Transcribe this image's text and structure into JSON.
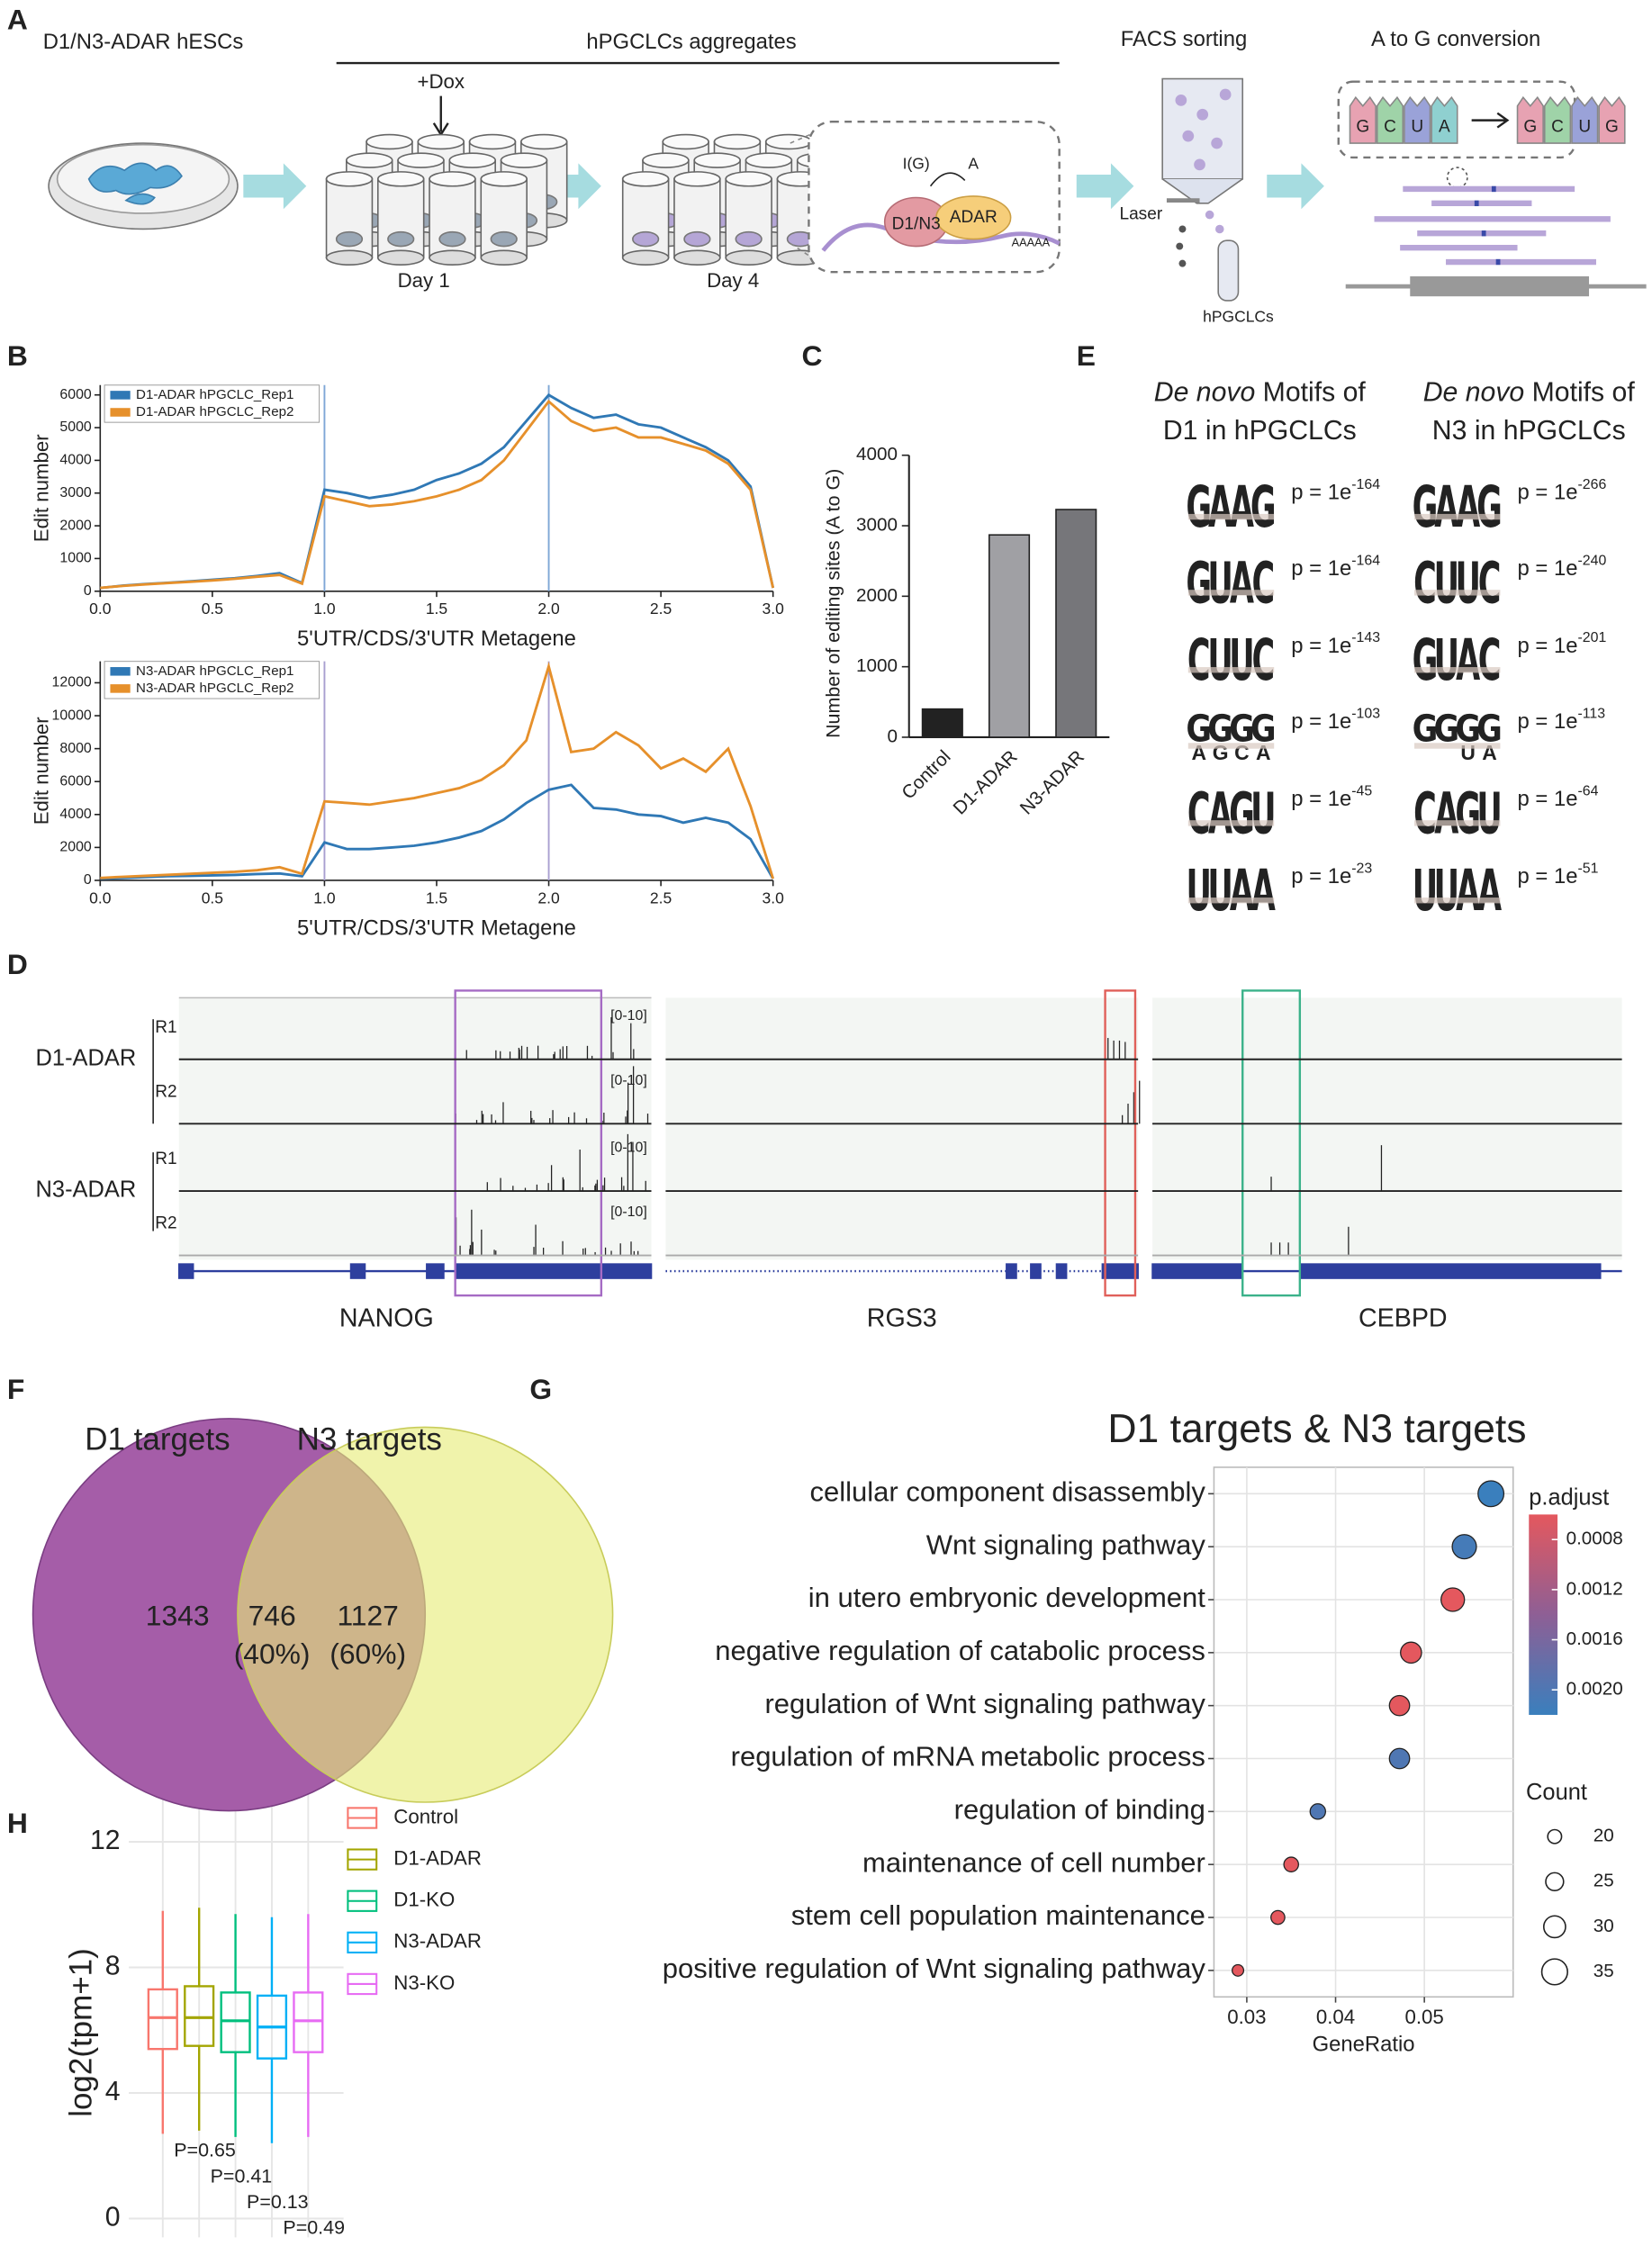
{
  "panel_labels": [
    "A",
    "B",
    "C",
    "D",
    "E",
    "F",
    "G",
    "H"
  ],
  "schematic": {
    "cells": "D1/N3-ADAR hESCs",
    "aggregates": "hPGCLCs aggregates",
    "dox": "+Dox",
    "day1": "Day 1",
    "day4": "Day 4",
    "inosine": "I(G)",
    "adenosine": "A",
    "protein": "D1/N3",
    "enzyme": "ADAR",
    "polya": "AAAAA",
    "facs": "FACS sorting",
    "laser": "Laser",
    "sorted": "hPGCLCs",
    "conversion": "A to G conversion",
    "before": [
      "G",
      "C",
      "U",
      "A"
    ],
    "after": [
      "G",
      "C",
      "U",
      "G"
    ]
  },
  "chart_data": [
    {
      "type": "line",
      "ylabel": "Edit number",
      "xlabel": "5'UTR/CDS/3'UTR Metagene",
      "legend": "upper left",
      "x": [
        0,
        0.1,
        0.2,
        0.3,
        0.4,
        0.5,
        0.6,
        0.7,
        0.8,
        0.9,
        1.0,
        1.1,
        1.2,
        1.3,
        1.4,
        1.5,
        1.6,
        1.7,
        1.8,
        1.9,
        2.0,
        2.1,
        2.2,
        2.3,
        2.4,
        2.5,
        2.6,
        2.7,
        2.8,
        2.9,
        3.0
      ],
      "series": [
        {
          "name": "D1-ADAR hPGCLC_Rep1",
          "color": "#2f78b5",
          "values": [
            100,
            170,
            220,
            260,
            300,
            350,
            400,
            470,
            550,
            250,
            3100,
            3000,
            2850,
            2950,
            3100,
            3400,
            3600,
            3900,
            4400,
            5200,
            6000,
            5600,
            5300,
            5400,
            5100,
            5000,
            4700,
            4400,
            4000,
            3200,
            100
          ]
        },
        {
          "name": "D1-ADAR hPGCLC_Rep2",
          "color": "#e6902b",
          "values": [
            100,
            160,
            210,
            250,
            290,
            330,
            380,
            440,
            500,
            230,
            2900,
            2750,
            2600,
            2650,
            2750,
            2900,
            3100,
            3400,
            4000,
            4900,
            5800,
            5200,
            4900,
            5000,
            4700,
            4700,
            4500,
            4300,
            3900,
            3100,
            100
          ]
        }
      ],
      "xlim": [
        0,
        3
      ],
      "xticks": [
        {
          "value": 0,
          "label": "0.0"
        },
        0.5,
        {
          "value": 1,
          "label": "1.0"
        },
        1.5,
        {
          "value": 2,
          "label": "2.0"
        },
        2.5,
        {
          "value": 3,
          "label": "3.0"
        }
      ],
      "ylim": [
        0,
        6300
      ],
      "yticks": [
        0,
        1000,
        2000,
        3000,
        4000,
        5000,
        6000
      ],
      "vlines": [
        1,
        2
      ],
      "vline_color": "#7fa7d6"
    },
    {
      "type": "line",
      "ylabel": "Edit number",
      "xlabel": "5'UTR/CDS/3'UTR Metagene",
      "legend": "upper left",
      "x": [
        0,
        0.1,
        0.2,
        0.3,
        0.4,
        0.5,
        0.6,
        0.7,
        0.8,
        0.9,
        1.0,
        1.1,
        1.2,
        1.3,
        1.4,
        1.5,
        1.6,
        1.7,
        1.8,
        1.9,
        2.0,
        2.1,
        2.2,
        2.3,
        2.4,
        2.5,
        2.6,
        2.7,
        2.8,
        2.9,
        3.0
      ],
      "series": [
        {
          "name": "N3-ADAR hPGCLC_Rep1",
          "color": "#2f78b5",
          "values": [
            100,
            150,
            200,
            250,
            280,
            300,
            330,
            380,
            420,
            250,
            2300,
            1900,
            1900,
            2000,
            2100,
            2300,
            2600,
            3000,
            3700,
            4700,
            5500,
            5800,
            4400,
            4300,
            4000,
            3900,
            3500,
            3800,
            3500,
            2500,
            100
          ]
        },
        {
          "name": "N3-ADAR hPGCLC_Rep2",
          "color": "#e6902b",
          "values": [
            150,
            220,
            280,
            340,
            400,
            460,
            520,
            620,
            800,
            400,
            4800,
            4700,
            4600,
            4800,
            5000,
            5300,
            5600,
            6100,
            7000,
            8500,
            13000,
            7800,
            8000,
            9000,
            8200,
            6800,
            7400,
            6600,
            8000,
            4500,
            100
          ]
        }
      ],
      "xlim": [
        0,
        3
      ],
      "xticks": [
        {
          "value": 0,
          "label": "0.0"
        },
        0.5,
        {
          "value": 1,
          "label": "1.0"
        },
        1.5,
        {
          "value": 2,
          "label": "2.0"
        },
        2.5,
        {
          "value": 3,
          "label": "3.0"
        }
      ],
      "ylim": [
        0,
        13300
      ],
      "yticks": [
        0,
        2000,
        4000,
        6000,
        8000,
        10000,
        12000
      ],
      "vlines": [
        1,
        2
      ],
      "vline_color": "#a9a0d0"
    },
    {
      "type": "bar",
      "ylabel": "Number of editing sites (A to G)",
      "categories": [
        "Control",
        "D1-ADAR",
        "N3-ADAR"
      ],
      "values": [
        400,
        2870,
        3230
      ],
      "colors": [
        "#222222",
        "#a0a0a4",
        "#76767a"
      ],
      "ylim": [
        0,
        4000
      ],
      "yticks": [
        0,
        1000,
        2000,
        3000,
        4000
      ]
    },
    {
      "type": "dot",
      "title": "D1 targets & N3 targets",
      "xlabel": "GeneRatio",
      "categories": [
        "cellular component disassembly",
        "Wnt signaling pathway",
        "in utero embryonic development",
        "negative regulation of catabolic process",
        "regulation of Wnt signaling pathway",
        "regulation of mRNA metabolic process",
        "regulation of binding",
        "maintenance of cell number",
        "stem cell population maintenance",
        "positive regulation of Wnt signaling pathway"
      ],
      "values": [
        0.0575,
        0.0545,
        0.0532,
        0.0485,
        0.0472,
        0.0472,
        0.038,
        0.035,
        0.0335,
        0.029
      ],
      "padj": [
        0.0022,
        0.0021,
        0.0006,
        0.0006,
        0.0006,
        0.002,
        0.002,
        0.0006,
        0.0006,
        0.0006
      ],
      "counts": [
        35,
        33,
        32,
        29,
        28,
        28,
        22,
        21,
        20,
        17
      ],
      "xlim": [
        0.0263,
        0.06
      ],
      "xticks": [
        0.03,
        0.04,
        0.05
      ],
      "grid": true,
      "color_label": "p.adjust",
      "clim": [
        0.0006,
        0.0022
      ],
      "cticks": [
        0.0008,
        0.0012,
        0.0016,
        {
          "value": 0.002,
          "label": "0.0020"
        }
      ],
      "color_scale": [
        "#e4585e",
        "#8e5f95",
        "#3a7fbd"
      ],
      "size_label": "Count",
      "size_ticks": [
        20,
        25,
        30,
        35
      ]
    },
    {
      "type": "box",
      "ylabel": "log2(tpm+1)",
      "categories": [
        "Control",
        "D1-ADAR",
        "D1-KO",
        "N3-ADAR",
        "N3-KO"
      ],
      "colors": [
        "#f8766d",
        "#a3a500",
        "#00bf7d",
        "#00b0f6",
        "#e76bf3"
      ],
      "whisker_low": [
        2.7,
        2.8,
        2.6,
        2.4,
        2.6
      ],
      "q1": [
        5.4,
        5.5,
        5.3,
        5.1,
        5.3
      ],
      "median": [
        6.4,
        6.4,
        6.3,
        6.1,
        6.3
      ],
      "q3": [
        7.3,
        7.4,
        7.2,
        7.1,
        7.2
      ],
      "whisker_high": [
        9.8,
        9.9,
        9.7,
        9.6,
        9.7
      ],
      "ylim": [
        -0.6,
        13.9
      ],
      "yticks": [
        0,
        4,
        8,
        12
      ],
      "grid": true,
      "annotations": [
        "P=0.65",
        "P=0.41",
        "P=0.13",
        "P=0.49"
      ]
    }
  ],
  "tracks": {
    "groups": [
      {
        "name": "D1-ADAR",
        "reps": [
          "R1",
          "R2"
        ]
      },
      {
        "name": "N3-ADAR",
        "reps": [
          "R1",
          "R2"
        ]
      }
    ],
    "range_label": "[0-10]",
    "genes": [
      "NANOG",
      "RGS3",
      "CEBPD"
    ]
  },
  "motifs": {
    "columns": [
      {
        "italic": "De novo",
        "title": " Motifs of",
        "subtitle": "D1 in hPGCLCs",
        "rows": [
          {
            "motif": "GAAG",
            "p": "p = 1e",
            "exp": "-164"
          },
          {
            "motif": "GUAC",
            "p": "p = 1e",
            "exp": "-164"
          },
          {
            "motif": "CUUC",
            "p": "p = 1e",
            "exp": "-143"
          },
          {
            "motif": "GGGG",
            "lower": [
              "A",
              "G",
              "C",
              "A"
            ],
            "p": "p = 1e",
            "exp": "-103"
          },
          {
            "motif": "CAGU",
            "p": "p = 1e",
            "exp": "-45"
          },
          {
            "motif": "UUAA",
            "p": "p = 1e",
            "exp": "-23"
          }
        ]
      },
      {
        "italic": "De novo",
        "title": " Motifs of",
        "subtitle": "N3 in hPGCLCs",
        "rows": [
          {
            "motif": "GAAG",
            "p": "p = 1e",
            "exp": "-266"
          },
          {
            "motif": "CUUC",
            "p": "p = 1e",
            "exp": "-240"
          },
          {
            "motif": "GUAC",
            "p": "p = 1e",
            "exp": "-201"
          },
          {
            "motif": "GGGG",
            "lower": [
              null,
              null,
              "U",
              "A"
            ],
            "p": "p = 1e",
            "exp": "-113"
          },
          {
            "motif": "CAGU",
            "p": "p = 1e",
            "exp": "-64"
          },
          {
            "motif": "UUAA",
            "p": "p = 1e",
            "exp": "-51"
          }
        ]
      }
    ]
  },
  "venn": {
    "left_title": "D1 targets",
    "right_title": "N3 targets",
    "left_only": 1343,
    "shared": 746,
    "shared_pct": "(40%)",
    "right_only": 1127,
    "right_pct": "(60%)"
  }
}
